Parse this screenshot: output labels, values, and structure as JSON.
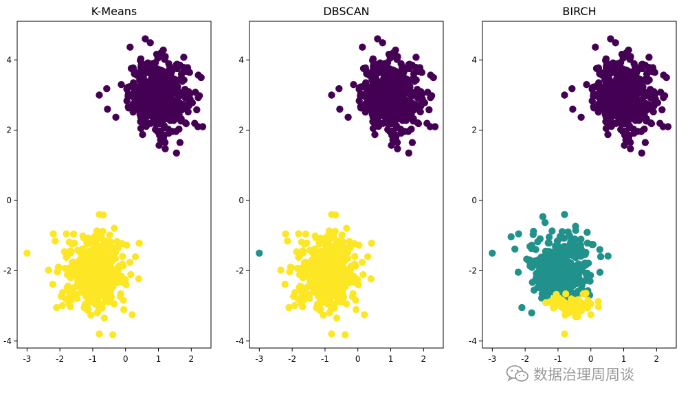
{
  "chart_data": [
    {
      "type": "scatter",
      "title": "K-Means",
      "xlim": [
        -3.3,
        2.6
      ],
      "ylim": [
        -4.2,
        5.1
      ],
      "xticks": [
        -3,
        -2,
        -1,
        0,
        1,
        2
      ],
      "yticks": [
        -4,
        -2,
        0,
        2,
        4
      ],
      "xlabel": "",
      "ylabel": "",
      "grid": false,
      "series": [
        {
          "color": "#440154",
          "center": [
            1.0,
            3.0
          ],
          "spread": [
            0.45,
            0.5
          ],
          "count": 500,
          "outliers": [
            [
              0.6,
              4.6
            ],
            [
              1.55,
              1.35
            ],
            [
              2.3,
              3.5
            ],
            [
              -0.55,
              2.6
            ],
            [
              1.2,
              1.65
            ],
            [
              -0.8,
              3.0
            ],
            [
              2.2,
              2.1
            ]
          ]
        },
        {
          "color": "#fde725",
          "center": [
            -0.95,
            -2.05
          ],
          "spread": [
            0.45,
            0.5
          ],
          "count": 500,
          "outliers": [
            [
              -3.0,
              -1.5
            ],
            [
              -0.8,
              -3.8
            ],
            [
              -0.8,
              -0.4
            ],
            [
              0.2,
              -3.25
            ],
            [
              -2.2,
              -0.95
            ],
            [
              -2.1,
              -3.05
            ],
            [
              0.3,
              -1.6
            ]
          ]
        }
      ]
    },
    {
      "type": "scatter",
      "title": "DBSCAN",
      "xlim": [
        -3.3,
        2.6
      ],
      "ylim": [
        -4.2,
        5.1
      ],
      "xticks": [
        -3,
        -2,
        -1,
        0,
        1,
        2
      ],
      "yticks": [
        -4,
        -2,
        0,
        2,
        4
      ],
      "xlabel": "",
      "ylabel": "",
      "grid": false,
      "series": [
        {
          "color": "#440154",
          "center": [
            1.0,
            3.0
          ],
          "spread": [
            0.45,
            0.5
          ],
          "count": 500,
          "outliers": [
            [
              0.6,
              4.6
            ],
            [
              1.55,
              1.35
            ],
            [
              2.3,
              3.5
            ],
            [
              -0.55,
              2.6
            ],
            [
              1.2,
              1.65
            ],
            [
              -0.8,
              3.0
            ],
            [
              2.2,
              2.1
            ]
          ]
        },
        {
          "color": "#fde725",
          "center": [
            -0.95,
            -2.05
          ],
          "spread": [
            0.45,
            0.5
          ],
          "count": 500,
          "outliers": [
            [
              -0.8,
              -3.8
            ],
            [
              -0.8,
              -0.4
            ],
            [
              0.2,
              -3.25
            ],
            [
              -2.2,
              -0.95
            ],
            [
              -2.1,
              -3.05
            ],
            [
              0.3,
              -1.6
            ]
          ]
        },
        {
          "color": "#21918c",
          "center": null,
          "spread": null,
          "count": 0,
          "outliers": [
            [
              -3.0,
              -1.5
            ]
          ]
        }
      ]
    },
    {
      "type": "scatter",
      "title": "BIRCH",
      "xlim": [
        -3.3,
        2.6
      ],
      "ylim": [
        -4.2,
        5.1
      ],
      "xticks": [
        -3,
        -2,
        -1,
        0,
        1,
        2
      ],
      "yticks": [
        -4,
        -2,
        0,
        2,
        4
      ],
      "xlabel": "",
      "ylabel": "",
      "grid": false,
      "series": [
        {
          "color": "#440154",
          "center": [
            1.0,
            3.0
          ],
          "spread": [
            0.45,
            0.5
          ],
          "count": 500,
          "outliers": [
            [
              0.6,
              4.6
            ],
            [
              1.55,
              1.35
            ],
            [
              2.3,
              3.5
            ],
            [
              -0.55,
              2.6
            ],
            [
              1.2,
              1.65
            ],
            [
              -0.8,
              3.0
            ],
            [
              2.2,
              2.1
            ]
          ]
        },
        {
          "color": "#21918c",
          "center": [
            -0.95,
            -1.95
          ],
          "spread": [
            0.45,
            0.45
          ],
          "count": 430,
          "outliers": [
            [
              -3.0,
              -1.5
            ],
            [
              -0.8,
              -0.4
            ],
            [
              -2.2,
              -0.95
            ],
            [
              -2.1,
              -3.05
            ],
            [
              0.3,
              -1.6
            ],
            [
              -1.8,
              -3.2
            ]
          ]
        },
        {
          "color": "#fde725",
          "center": [
            -0.55,
            -2.95
          ],
          "spread": [
            0.35,
            0.15
          ],
          "count": 70,
          "outliers": [
            [
              -0.8,
              -3.8
            ],
            [
              0.0,
              -3.25
            ],
            [
              -0.4,
              -3.3
            ]
          ]
        }
      ]
    }
  ],
  "watermark": {
    "text": "数据治理周周谈",
    "icon": "wechat-icon"
  }
}
